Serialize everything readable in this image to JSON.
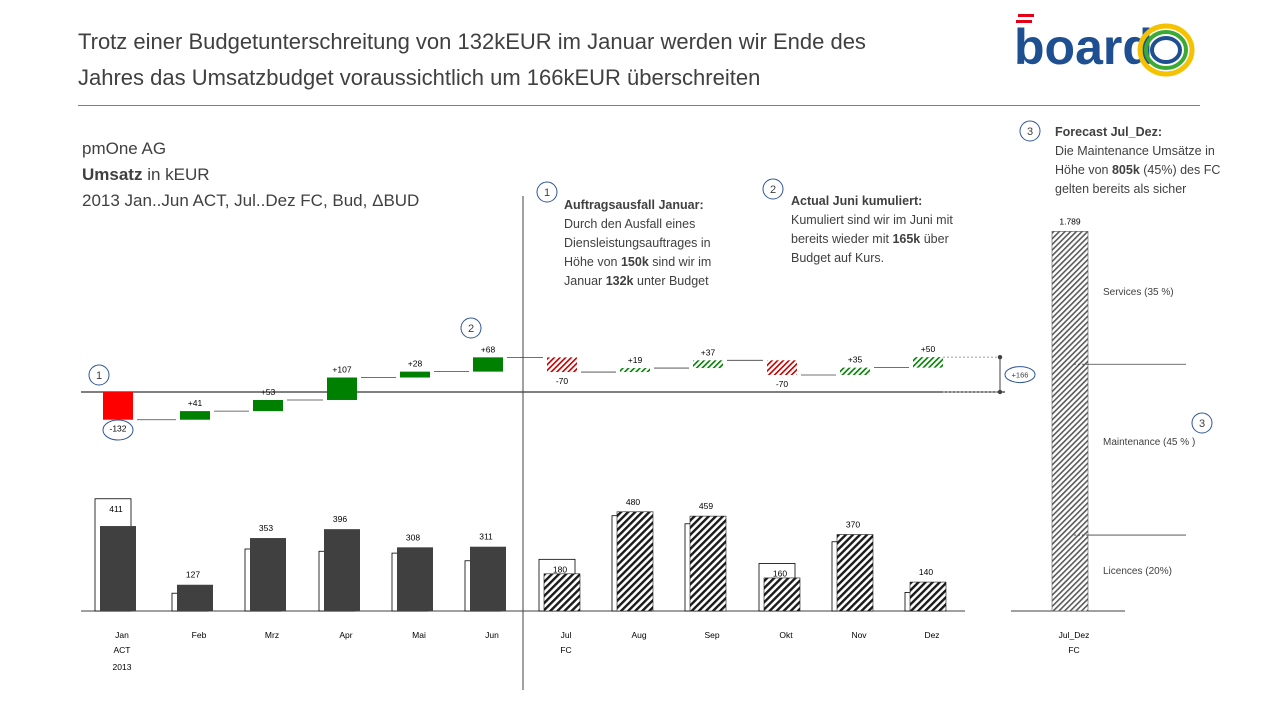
{
  "title_line1": "Trotz einer Budgetunterschreitung von 132kEUR im Januar werden wir Ende des",
  "title_line2": "Jahres das Umsatzbudget voraussichtlich um 166kEUR überschreiten",
  "logo_text": "board",
  "subtitle": {
    "company": "pmOne AG",
    "measure": "Umsatz",
    "unit": " in kEUR",
    "scenario": "2013 Jan..Jun ACT, Jul..Dez FC, Bud, ΔBUD"
  },
  "annotations": [
    {
      "num": "1",
      "heading": "Auftragsausfall Januar:",
      "l1": "Durch den Ausfall eines",
      "l2": "Diensleistungsauftrages in",
      "l3a": "Höhe von ",
      "l3b": "150k",
      "l3c": "  sind wir im",
      "l4a": "Januar ",
      "l4b": "132k",
      "l4c": "  unter Budget"
    },
    {
      "num": "2",
      "heading": "Actual Juni kumuliert:",
      "l1": "Kumuliert sind wir im Juni mit",
      "l2a": "bereits wieder mit ",
      "l2b": "165k",
      "l2c": " über",
      "l3": "Budget auf Kurs."
    },
    {
      "num": "3",
      "heading": "Forecast Jul_Dez:",
      "l1": "Die Maintenance Umsätze in",
      "l2a": "Höhe von ",
      "l2b": "805k",
      "l2c": "  (45%) des FC",
      "l3": "gelten bereits als sicher"
    }
  ],
  "markers": {
    "jan": "1",
    "jun": "2",
    "maint": "3"
  },
  "total_delta_label": "+166",
  "colors": {
    "actual": "#404040",
    "positive": "#008000",
    "negative": "#ff0000",
    "budget_outline": "#000000"
  },
  "chart_data": {
    "type": "bar",
    "title": "Umsatz in kEUR",
    "categories": [
      "Jan",
      "Feb",
      "Mrz",
      "Apr",
      "Mai",
      "Jun",
      "Jul",
      "Aug",
      "Sep",
      "Okt",
      "Nov",
      "Dez"
    ],
    "category_sub1": [
      "ACT",
      "",
      "",
      "",
      "",
      "",
      "FC",
      "",
      "",
      "",
      "",
      ""
    ],
    "category_sub2": [
      "2013",
      "",
      "",
      "",
      "",
      "",
      "",
      "",
      "",
      "",
      "",
      ""
    ],
    "scenario": [
      "ACT",
      "ACT",
      "ACT",
      "ACT",
      "ACT",
      "ACT",
      "FC",
      "FC",
      "FC",
      "FC",
      "FC",
      "FC"
    ],
    "series": [
      {
        "name": "Umsatz",
        "values": [
          411,
          127,
          353,
          396,
          308,
          311,
          180,
          480,
          459,
          160,
          370,
          140
        ],
        "labels": [
          "411",
          "127",
          "353",
          "396",
          "308",
          "311",
          "180",
          "480",
          "459",
          "160",
          "370",
          "140"
        ]
      },
      {
        "name": "Bud",
        "values": [
          543,
          86,
          300,
          289,
          280,
          243,
          250,
          461,
          422,
          230,
          335,
          90
        ]
      },
      {
        "name": "ΔBUD",
        "values": [
          -132,
          41,
          53,
          107,
          28,
          68,
          -70,
          19,
          37,
          -70,
          35,
          50
        ],
        "labels": [
          "-132",
          "+41",
          "+53",
          "+107",
          "+28",
          "+68",
          "-70",
          "+19",
          "+37",
          "-70",
          "+35",
          "+50"
        ]
      }
    ],
    "total": {
      "category": "Jul_Dez",
      "sub": "FC",
      "value": 1789,
      "label": "1.789",
      "segments": [
        {
          "name": "Services (35 %)",
          "share": 0.35
        },
        {
          "name": "Maintenance (45 % )",
          "share": 0.45
        },
        {
          "name": "Licences (20%)",
          "share": 0.2
        }
      ]
    }
  }
}
